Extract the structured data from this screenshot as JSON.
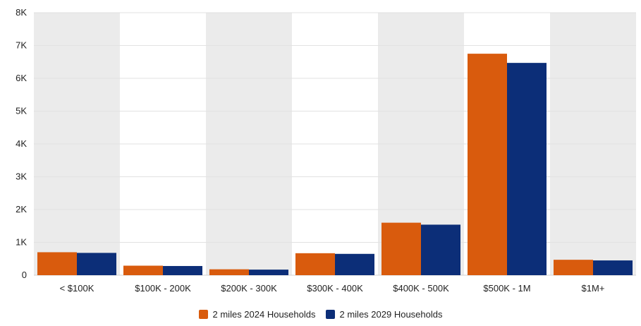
{
  "chart_data": {
    "type": "bar",
    "categories": [
      "< $100K",
      "$100K - 200K",
      "$200K - 300K",
      "$300K - 400K",
      "$400K - 500K",
      "$500K - 1M",
      "$1M+"
    ],
    "series": [
      {
        "name": "2 miles 2024 Households",
        "color": "#d95b0d",
        "values": [
          700,
          290,
          180,
          670,
          1600,
          6750,
          470
        ]
      },
      {
        "name": "2 miles 2029 Households",
        "color": "#0c2e78",
        "values": [
          680,
          280,
          170,
          650,
          1540,
          6470,
          450
        ]
      }
    ],
    "ylim": [
      0,
      8000
    ],
    "yticks": [
      0,
      1000,
      2000,
      3000,
      4000,
      5000,
      6000,
      7000,
      8000
    ],
    "ytick_labels": [
      "0",
      "1K",
      "2K",
      "3K",
      "4K",
      "5K",
      "6K",
      "7K",
      "8K"
    ],
    "band_color": "#ebebeb",
    "grid": true,
    "legend_position": "bottom"
  }
}
